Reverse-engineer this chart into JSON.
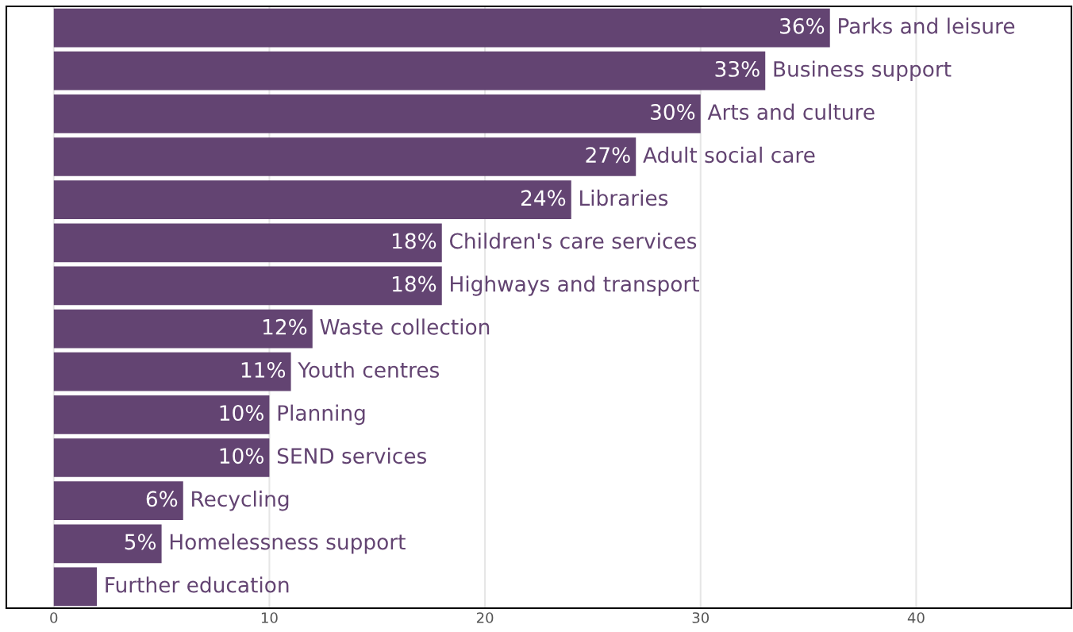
{
  "chart_data": {
    "type": "bar",
    "orientation": "horizontal",
    "categories": [
      "Parks and leisure",
      "Business support",
      "Arts and culture",
      "Adult social care",
      "Libraries",
      "Children's care services",
      "Highways and transport",
      "Waste collection",
      "Youth centres",
      "Planning",
      "SEND services",
      "Recycling",
      "Homelessness support",
      "Further education"
    ],
    "values": [
      36,
      33,
      30,
      27,
      24,
      18,
      18,
      12,
      11,
      10,
      10,
      6,
      5,
      2
    ],
    "value_labels": [
      "36%",
      "33%",
      "30%",
      "27%",
      "24%",
      "18%",
      "18%",
      "12%",
      "11%",
      "10%",
      "10%",
      "6%",
      "5%",
      null
    ],
    "color": "#634472",
    "xlim": [
      -2.2,
      47.2
    ],
    "xticks": [
      0,
      10,
      20,
      30,
      40
    ],
    "grid": "x",
    "tick_labels": "x"
  }
}
